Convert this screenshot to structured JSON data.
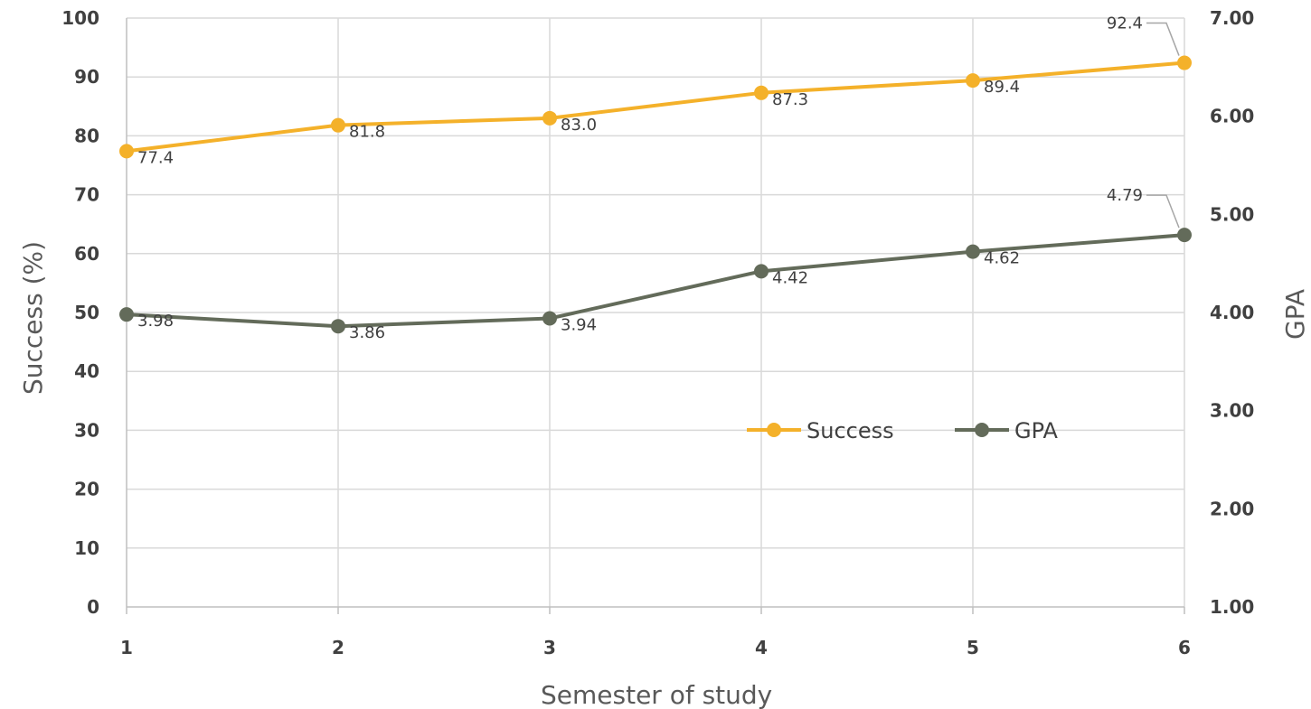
{
  "chart_data": {
    "type": "line",
    "title": "",
    "xlabel": "Semester of study",
    "ylabel": "Success (%)",
    "y2label": "GPA",
    "x": [
      "1",
      "2",
      "3",
      "4",
      "5",
      "6"
    ],
    "ylim": [
      0,
      100
    ],
    "yticks": [
      "0",
      "10",
      "20",
      "30",
      "40",
      "50",
      "60",
      "70",
      "80",
      "90",
      "100"
    ],
    "y2lim": [
      1,
      7
    ],
    "y2ticks": [
      "1.00",
      "2.00",
      "3.00",
      "4.00",
      "5.00",
      "6.00",
      "7.00"
    ],
    "grid": true,
    "legend": "center-right",
    "series": [
      {
        "name": "Success",
        "axis": "left",
        "color": "#f4b12a",
        "values": [
          77.4,
          81.8,
          83.0,
          87.3,
          89.4,
          92.4
        ],
        "labels": [
          "77.4",
          "81.8",
          "83.0",
          "87.3",
          "89.4",
          "92.4"
        ]
      },
      {
        "name": "GPA",
        "axis": "right",
        "color": "#636b5a",
        "values": [
          3.98,
          3.86,
          3.94,
          4.42,
          4.62,
          4.79
        ],
        "labels": [
          "3.98",
          "3.86",
          "3.94",
          "4.42",
          "4.62",
          "4.79"
        ]
      }
    ]
  }
}
